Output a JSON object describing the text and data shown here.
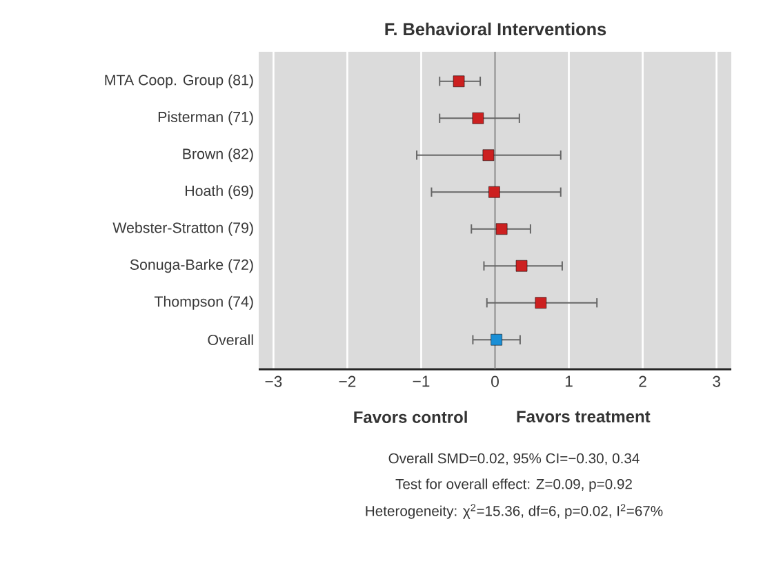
{
  "chart_data": {
    "type": "scatter",
    "orientation": "horizontal",
    "title": "F. Behavioral Interventions",
    "categories": [
      "MTA Coop. Group (81)",
      "Pisterman (71)",
      "Brown (82)",
      "Hoath (69)",
      "Webster-Stratton (79)",
      "Sonuga-Barke (72)",
      "Thompson (74)",
      "Overall"
    ],
    "series": [
      {
        "color": "#cc2020",
        "values": [
          -0.49,
          -0.23,
          -0.09,
          -0.01,
          0.09,
          0.36,
          0.62,
          null
        ],
        "errors": [
          [
            -0.75,
            -0.2
          ],
          [
            -0.75,
            0.33
          ],
          [
            -1.06,
            0.89
          ],
          [
            -0.86,
            0.89
          ],
          [
            -0.32,
            0.48
          ],
          [
            -0.15,
            0.91
          ],
          [
            -0.11,
            1.38
          ],
          null
        ]
      },
      {
        "color": "#1a8fd6",
        "values": [
          null,
          null,
          null,
          null,
          null,
          null,
          null,
          0.02
        ],
        "errors": [
          null,
          null,
          null,
          null,
          null,
          null,
          null,
          [
            -0.3,
            0.34
          ]
        ]
      }
    ],
    "marker": "square",
    "xlim": [
      -3.2,
      3.2
    ],
    "xticks": [
      {
        "value": -3,
        "label": "−3"
      },
      {
        "value": -2,
        "label": "−2"
      },
      {
        "value": -1,
        "label": "−1"
      },
      0,
      1,
      2,
      3
    ],
    "grid": "x",
    "ref_lines": [
      {
        "axis": "x",
        "value": 0,
        "color": "#707070"
      }
    ],
    "annotations": [
      "Favors control",
      "Favors treatment",
      "Overall SMD=0.02, 95% CI=−0.30, 0.34",
      "Test for overall effect: Z=0.09, p=0.92",
      "Heterogeneity: χ$^{2}$=15.36, df=6, p=0.02, I$^{2}$=67%"
    ]
  }
}
